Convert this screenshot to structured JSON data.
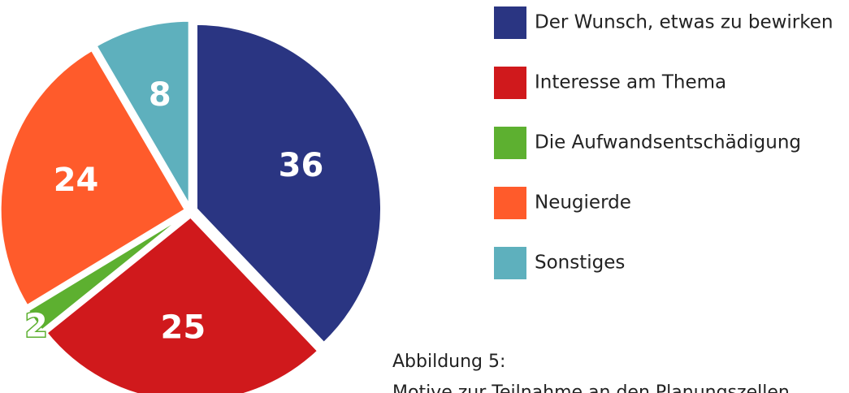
{
  "chart_data": {
    "type": "pie",
    "categories": [
      "Der Wunsch, etwas zu bewirken",
      "Interesse am Thema",
      "Die Aufwandsentschädigung",
      "Neugierde",
      "Sonstiges"
    ],
    "values": [
      36,
      25,
      2,
      24,
      8
    ],
    "colors": [
      "#2a3582",
      "#d0191c",
      "#5db030",
      "#ff5b2b",
      "#5eb0bd"
    ],
    "caption": [
      "Abbildung 5:",
      "Motive zur Teilnahme an den Planungszellen"
    ]
  }
}
